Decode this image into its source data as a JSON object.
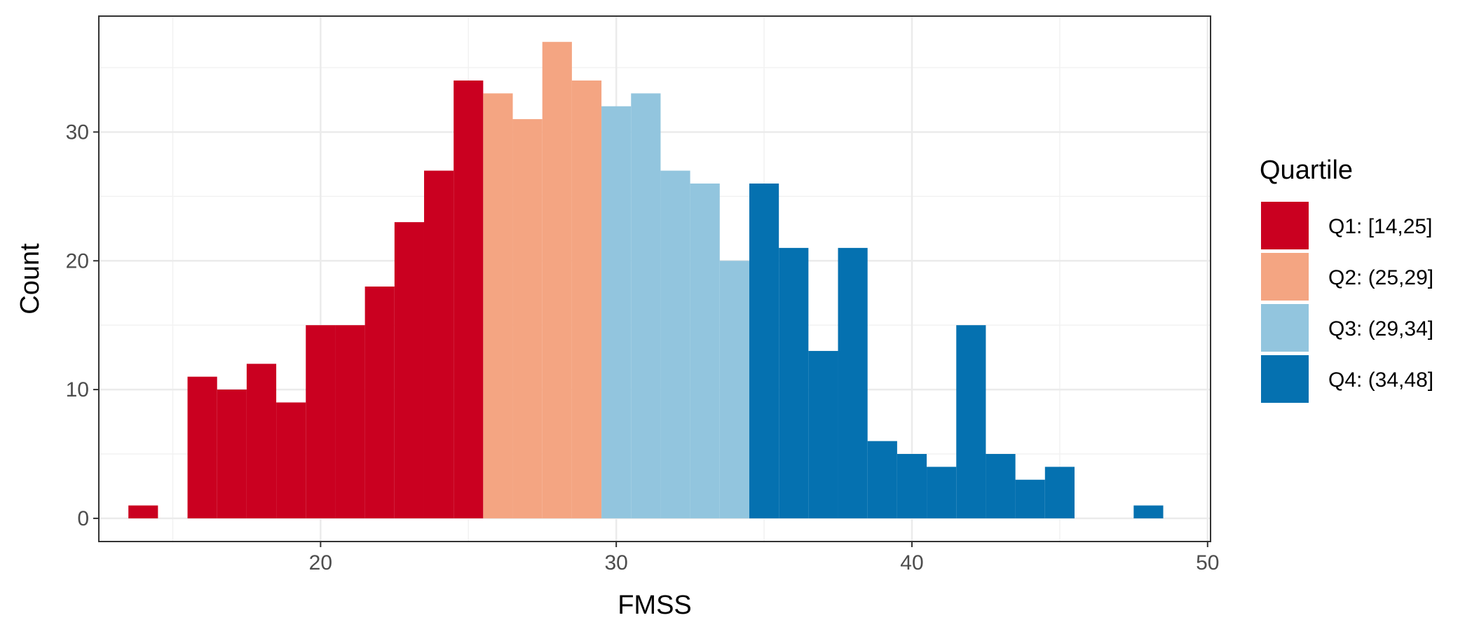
{
  "chart_data": {
    "type": "bar",
    "xlabel": "FMSS",
    "ylabel": "Count",
    "xlim": [
      12.5,
      50.1
    ],
    "ylim": [
      -1.8,
      39
    ],
    "xticks": [
      20,
      30,
      40,
      50
    ],
    "xtick_labels": [
      "20",
      "30",
      "40",
      "50"
    ],
    "yticks": [
      0,
      10,
      20,
      30
    ],
    "ytick_labels": [
      "0",
      "10",
      "20",
      "30"
    ],
    "bin_width": 1,
    "grid": true,
    "legend_position": "right",
    "legend_title": "Quartile",
    "series": [
      {
        "name": "Q1: [14,25]",
        "color": "#ca0020",
        "x": [
          14,
          15,
          16,
          17,
          18,
          19,
          20,
          21,
          22,
          23,
          24,
          25
        ],
        "values": [
          1,
          0,
          11,
          10,
          12,
          9,
          15,
          15,
          18,
          23,
          27,
          34
        ]
      },
      {
        "name": "Q2: (25,29]",
        "color": "#f4a582",
        "x": [
          26,
          27,
          28,
          29
        ],
        "values": [
          33,
          31,
          37,
          34
        ]
      },
      {
        "name": "Q3: (29,34]",
        "color": "#92c5de",
        "x": [
          30,
          31,
          32,
          33,
          34
        ],
        "values": [
          32,
          33,
          27,
          26,
          20
        ]
      },
      {
        "name": "Q4: (34,48]",
        "color": "#0571b0",
        "x": [
          35,
          36,
          37,
          38,
          39,
          40,
          41,
          42,
          43,
          44,
          45,
          46,
          47,
          48
        ],
        "values": [
          26,
          21,
          13,
          21,
          6,
          5,
          4,
          15,
          5,
          3,
          4,
          0,
          0,
          1
        ]
      }
    ]
  }
}
